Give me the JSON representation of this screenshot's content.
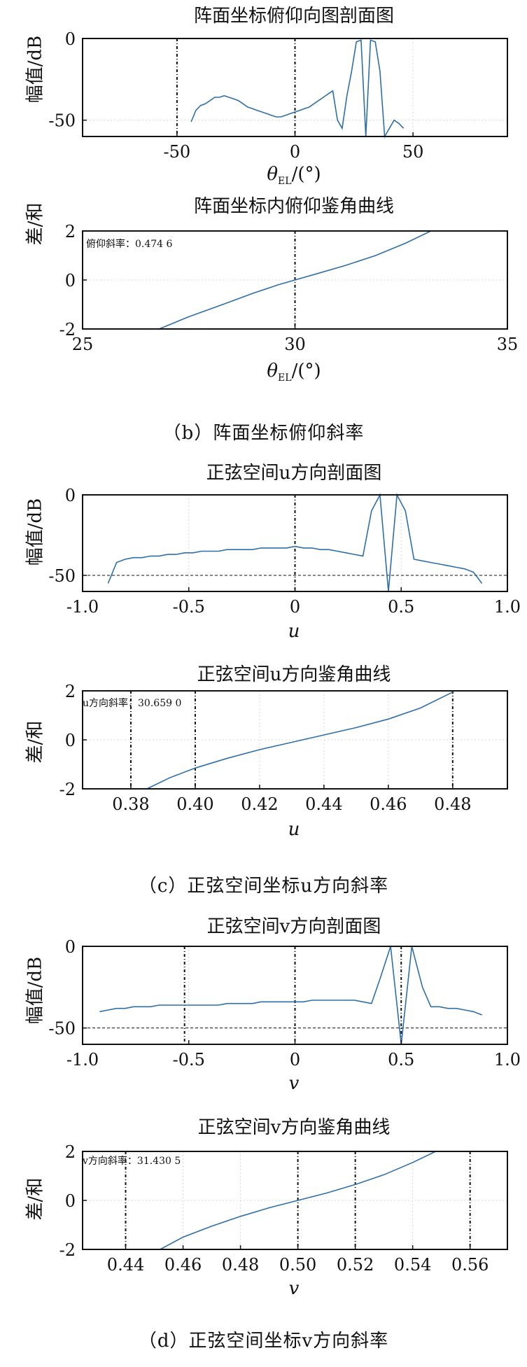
{
  "chart_data": [
    {
      "type": "line",
      "title": "阵面坐标俯仰向图剖面图",
      "ylabel": "幅值/dB",
      "xlabel_sym": "θ",
      "xlabel_sub": "EL",
      "xlabel_tail": "/(°)",
      "xlim": [
        -90,
        90
      ],
      "ylim": [
        -60,
        0
      ],
      "xticks": [
        -50,
        0,
        50
      ],
      "xtick_labels": [
        "-50",
        "0",
        "50"
      ],
      "yticks": [
        0,
        -50
      ],
      "ytick_labels": [
        "0",
        "-50"
      ],
      "vlines": [
        -50,
        0
      ],
      "series": [
        {
          "x": [
            -44,
            -42,
            -40,
            -38,
            -36,
            -34,
            -32,
            -30,
            -28,
            -26,
            -24,
            -22,
            -20,
            -18,
            -16,
            -14,
            -12,
            -10,
            -8,
            -6,
            -4,
            -2,
            0,
            2,
            4,
            6,
            8,
            10,
            12,
            14,
            16,
            18,
            20,
            22,
            24,
            26,
            28,
            30,
            32,
            34,
            36,
            38,
            40,
            42,
            44,
            46
          ],
          "y": [
            -51,
            -44,
            -41,
            -40,
            -38,
            -36,
            -36,
            -35,
            -36,
            -37,
            -38,
            -40,
            -42,
            -43,
            -44,
            -45,
            -46,
            -47,
            -48,
            -48,
            -47,
            -46,
            -45,
            -44,
            -43,
            -42,
            -40,
            -38,
            -36,
            -34,
            -32,
            -50,
            -55,
            -35,
            -20,
            -2,
            -1,
            -60,
            -1,
            -2,
            -20,
            -60,
            -55,
            -50,
            -52,
            -55
          ]
        }
      ]
    },
    {
      "type": "line",
      "title": "阵面坐标内俯仰鉴角曲线",
      "ylabel": "差/和",
      "xlabel_sym": "θ",
      "xlabel_sub": "EL",
      "xlabel_tail": "/(°)",
      "annotation": "俯仰斜率：0.474 6",
      "xlim": [
        25,
        35
      ],
      "ylim": [
        -2,
        2
      ],
      "xticks": [
        25,
        30,
        35
      ],
      "xtick_labels": [
        "25",
        "30",
        "35"
      ],
      "yticks": [
        2,
        0,
        -2
      ],
      "ytick_labels": [
        "2",
        "0",
        "-2"
      ],
      "vlines": [
        30
      ],
      "series": [
        {
          "x": [
            26.8,
            27.5,
            28.3,
            29.0,
            29.6,
            30.0,
            30.5,
            31.2,
            31.9,
            32.6,
            33.2
          ],
          "y": [
            -2.0,
            -1.5,
            -1.0,
            -0.55,
            -0.2,
            0.0,
            0.25,
            0.6,
            1.0,
            1.5,
            2.0
          ]
        }
      ]
    },
    {
      "type": "line",
      "title": "正弦空间u方向剖面图",
      "ylabel": "幅值/dB",
      "xlabel_sym": "u",
      "xlabel_sub": "",
      "xlabel_tail": "",
      "xlim": [
        -1.0,
        1.0
      ],
      "ylim": [
        -60,
        0
      ],
      "xticks": [
        -1.0,
        -0.5,
        0,
        0.5,
        1.0
      ],
      "xtick_labels": [
        "-1.0",
        "-0.5",
        "0",
        "0.5",
        "1.0"
      ],
      "yticks": [
        0,
        -50
      ],
      "ytick_labels": [
        "0",
        "-50"
      ],
      "hline": -50,
      "vlines": [
        0
      ],
      "series": [
        {
          "x": [
            -0.88,
            -0.84,
            -0.8,
            -0.76,
            -0.72,
            -0.68,
            -0.64,
            -0.6,
            -0.56,
            -0.52,
            -0.48,
            -0.44,
            -0.4,
            -0.36,
            -0.32,
            -0.28,
            -0.24,
            -0.2,
            -0.16,
            -0.12,
            -0.08,
            -0.04,
            0,
            0.04,
            0.08,
            0.12,
            0.16,
            0.2,
            0.24,
            0.28,
            0.32,
            0.36,
            0.4,
            0.44,
            0.48,
            0.52,
            0.56,
            0.6,
            0.64,
            0.68,
            0.72,
            0.76,
            0.8,
            0.84,
            0.88
          ],
          "y": [
            -55,
            -42,
            -40,
            -39,
            -39,
            -38,
            -38,
            -37,
            -37,
            -36,
            -36,
            -35,
            -35,
            -35,
            -34,
            -34,
            -34,
            -34,
            -33,
            -33,
            -33,
            -33,
            -32,
            -33,
            -33,
            -34,
            -34,
            -35,
            -36,
            -37,
            -38,
            -10,
            0,
            -60,
            0,
            -10,
            -40,
            -41,
            -42,
            -43,
            -44,
            -45,
            -46,
            -48,
            -55
          ]
        }
      ]
    },
    {
      "type": "line",
      "title": "正弦空间u方向鉴角曲线",
      "ylabel": "差/和",
      "xlabel_sym": "u",
      "xlabel_sub": "",
      "xlabel_tail": "",
      "annotation": "u方向斜率：30.659 0",
      "xlim": [
        0.365,
        0.497
      ],
      "ylim": [
        -2,
        2
      ],
      "xticks": [
        0.38,
        0.4,
        0.42,
        0.44,
        0.46,
        0.48
      ],
      "xtick_labels": [
        "0.38",
        "0.40",
        "0.42",
        "0.44",
        "0.46",
        "0.48"
      ],
      "yticks": [
        2,
        0,
        -2
      ],
      "ytick_labels": [
        "2",
        "0",
        "-2"
      ],
      "vlines": [
        0.38,
        0.4,
        0.48
      ],
      "series": [
        {
          "x": [
            0.385,
            0.392,
            0.4,
            0.41,
            0.42,
            0.43,
            0.44,
            0.45,
            0.46,
            0.47,
            0.48
          ],
          "y": [
            -2.0,
            -1.55,
            -1.15,
            -0.75,
            -0.4,
            -0.1,
            0.2,
            0.5,
            0.85,
            1.3,
            1.95
          ]
        }
      ]
    },
    {
      "type": "line",
      "title": "正弦空间v方向剖面图",
      "ylabel": "幅值/dB",
      "xlabel_sym": "v",
      "xlabel_sub": "",
      "xlabel_tail": "",
      "xlim": [
        -1.0,
        1.0
      ],
      "ylim": [
        -60,
        0
      ],
      "xticks": [
        -1.0,
        -0.5,
        0,
        0.5,
        1.0
      ],
      "xtick_labels": [
        "-1.0",
        "-0.5",
        "0",
        "0.5",
        "1.0"
      ],
      "yticks": [
        0,
        -50
      ],
      "ytick_labels": [
        "0",
        "-50"
      ],
      "hline": -50,
      "vlines": [
        -0.52,
        0,
        0.5
      ],
      "series": [
        {
          "x": [
            -0.92,
            -0.88,
            -0.84,
            -0.8,
            -0.76,
            -0.72,
            -0.68,
            -0.64,
            -0.6,
            -0.56,
            -0.52,
            -0.48,
            -0.44,
            -0.4,
            -0.36,
            -0.32,
            -0.28,
            -0.24,
            -0.2,
            -0.16,
            -0.12,
            -0.08,
            -0.04,
            0,
            0.04,
            0.08,
            0.12,
            0.16,
            0.2,
            0.24,
            0.28,
            0.32,
            0.36,
            0.4,
            0.45,
            0.5,
            0.55,
            0.6,
            0.64,
            0.68,
            0.72,
            0.76,
            0.8,
            0.84,
            0.88
          ],
          "y": [
            -40,
            -39,
            -38,
            -38,
            -37,
            -37,
            -37,
            -36,
            -36,
            -36,
            -36,
            -36,
            -36,
            -36,
            -36,
            -35,
            -35,
            -35,
            -35,
            -34,
            -34,
            -34,
            -34,
            -34,
            -34,
            -33,
            -33,
            -33,
            -33,
            -33,
            -33,
            -34,
            -35,
            -20,
            0,
            -60,
            0,
            -25,
            -37,
            -37,
            -38,
            -38,
            -39,
            -40,
            -42
          ]
        }
      ]
    },
    {
      "type": "line",
      "title": "正弦空间v方向鉴角曲线",
      "ylabel": "差/和",
      "xlabel_sym": "v",
      "xlabel_sub": "",
      "xlabel_tail": "",
      "annotation": "v方向斜率：31.430 5",
      "xlim": [
        0.425,
        0.573
      ],
      "ylim": [
        -2,
        2
      ],
      "xticks": [
        0.44,
        0.46,
        0.48,
        0.5,
        0.52,
        0.54,
        0.56
      ],
      "xtick_labels": [
        "0.44",
        "0.46",
        "0.48",
        "0.50",
        "0.52",
        "0.54",
        "0.56"
      ],
      "yticks": [
        2,
        0,
        -2
      ],
      "ytick_labels": [
        "2",
        "0",
        "-2"
      ],
      "vlines": [
        0.44,
        0.5,
        0.52,
        0.56
      ],
      "series": [
        {
          "x": [
            0.452,
            0.46,
            0.47,
            0.48,
            0.49,
            0.5,
            0.51,
            0.52,
            0.53,
            0.54,
            0.548
          ],
          "y": [
            -2.0,
            -1.5,
            -1.05,
            -0.65,
            -0.3,
            0.0,
            0.3,
            0.65,
            1.05,
            1.55,
            2.0
          ]
        }
      ]
    }
  ],
  "captions": {
    "b": "（b）阵面坐标俯仰斜率",
    "c": "（c）正弦空间坐标u方向斜率",
    "d": "（d）正弦空间坐标v方向斜率"
  },
  "colors": {
    "curve": "#2e6fa8",
    "axis": "#111111",
    "grid": "#d8d8d8"
  }
}
